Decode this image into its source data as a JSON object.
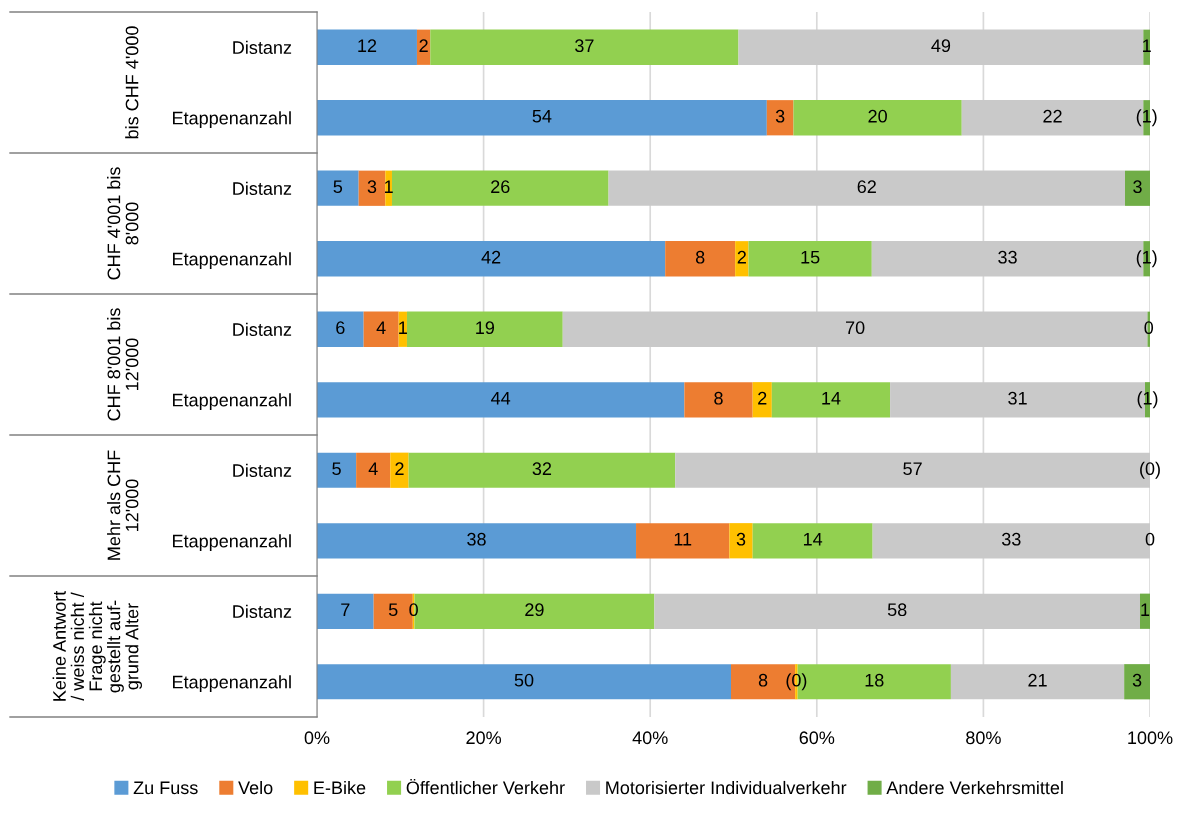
{
  "chart_data": {
    "type": "bar",
    "orientation": "horizontal",
    "stacked": true,
    "categories": [
      "Distanz",
      "Etappenanzahl",
      "Distanz",
      "Etappenanzahl",
      "Distanz",
      "Etappenanzahl",
      "Distanz",
      "Etappenanzahl",
      "Distanz",
      "Etappenanzahl"
    ],
    "series": [
      {
        "name": "Zu Fuss",
        "color": "#5b9bd5",
        "values": [
          12.0,
          54.0,
          5.0,
          41.8,
          5.6,
          44.1,
          4.7,
          38.3,
          6.8,
          49.7
        ],
        "value_labels": [
          "12",
          "54",
          "5",
          "42",
          "6",
          "44",
          "5",
          "38",
          "7",
          "50"
        ]
      },
      {
        "name": "Velo",
        "color": "#ed7d31",
        "values": [
          1.6,
          3.2,
          3.2,
          8.4,
          4.2,
          8.2,
          4.1,
          11.2,
          4.7,
          7.7
        ],
        "value_labels": [
          "2",
          "3",
          "3",
          "8",
          "4",
          "8",
          "4",
          "11",
          "5",
          "8"
        ]
      },
      {
        "name": "E-Bike",
        "color": "#ffc000",
        "values": [
          0,
          0,
          0.8,
          1.6,
          1.0,
          2.3,
          2.2,
          2.8,
          0.2,
          0.3
        ],
        "value_labels": [
          null,
          null,
          "1",
          "2",
          "1",
          "2",
          "2",
          "3",
          "0",
          "(0)"
        ]
      },
      {
        "name": "Öffentlicher Verkehr",
        "color": "#92d050",
        "values": [
          37.0,
          20.2,
          26.0,
          14.8,
          18.7,
          14.2,
          32.0,
          14.4,
          28.8,
          18.4
        ],
        "value_labels": [
          "37",
          "20",
          "26",
          "15",
          "19",
          "14",
          "32",
          "14",
          "29",
          "18"
        ]
      },
      {
        "name": "Motorisierter Individualverkehr",
        "color": "#c9c9c9",
        "values": [
          48.6,
          21.8,
          62.0,
          32.6,
          70.2,
          30.6,
          57.0,
          33.3,
          58.3,
          20.8
        ],
        "value_labels": [
          "49",
          "22",
          "62",
          "33",
          "70",
          "31",
          "57",
          "33",
          "58",
          "21"
        ]
      },
      {
        "name": "Andere Verkehrsmittel",
        "color": "#70ad47",
        "values": [
          0.8,
          0.8,
          3.0,
          0.8,
          0.3,
          0.6,
          0,
          0,
          1.2,
          3.1
        ],
        "value_labels": [
          "1",
          "(1)",
          "3",
          "(1)",
          "0",
          "(1)",
          "(0)",
          "0",
          "1",
          "3"
        ]
      }
    ],
    "xlim": [
      0,
      100
    ],
    "xticks": [
      {
        "value": 0,
        "label": "0%"
      },
      {
        "value": 20,
        "label": "20%"
      },
      {
        "value": 40,
        "label": "40%"
      },
      {
        "value": 60,
        "label": "60%"
      },
      {
        "value": 80,
        "label": "80%"
      },
      {
        "value": 100,
        "label": "100%"
      }
    ],
    "annotations": [
      "bis CHF 4'000",
      "CHF 4'001 bis\n8'000",
      "CHF 8'001 bis\n12'000",
      "Mehr als CHF\n12'000",
      "Keine Antwort\n/ weiss nicht /\nFrage nicht\ngestellt auf-\ngrund Alter"
    ],
    "grid": "x",
    "legend": "bottom"
  }
}
